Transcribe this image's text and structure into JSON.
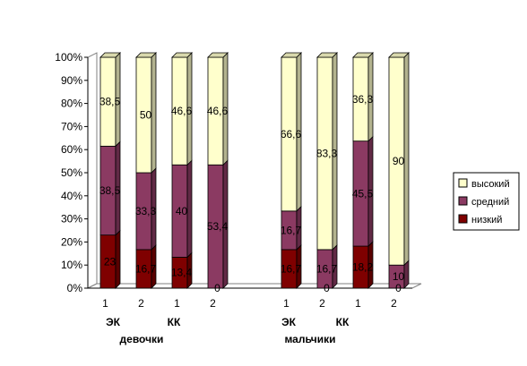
{
  "chart_data": {
    "type": "bar",
    "stacked": true,
    "percent": true,
    "categories": [
      "1",
      "2",
      "1",
      "2",
      "1",
      "2",
      "1",
      "2"
    ],
    "series": [
      {
        "name": "низкий",
        "color": "#7f0000",
        "values": [
          23,
          16.7,
          13.4,
          0,
          16.7,
          0,
          18.2,
          0
        ],
        "labels": [
          "23",
          "16,7",
          "13,4",
          "0",
          "16,7",
          "0",
          "18,2",
          "0"
        ]
      },
      {
        "name": "средний",
        "color": "#8b3a62",
        "values": [
          38.5,
          33.3,
          40,
          53.4,
          16.7,
          16.7,
          45.5,
          10
        ],
        "labels": [
          "38,5",
          "33,3",
          "40",
          "53,4",
          "16,7",
          "16,7",
          "45,5",
          "10"
        ]
      },
      {
        "name": "высокий",
        "color": "#ffffcc",
        "values": [
          38.5,
          50,
          46.6,
          46.6,
          66.6,
          83.3,
          36.3,
          90
        ],
        "labels": [
          "38,5",
          "50",
          "46,6",
          "46,6",
          "66,6",
          "83,3",
          "36,3",
          "90"
        ]
      }
    ],
    "y_ticks": [
      "0%",
      "10%",
      "20%",
      "30%",
      "40%",
      "50%",
      "60%",
      "70%",
      "80%",
      "90%",
      "100%"
    ],
    "ylim": [
      0,
      100
    ],
    "subgroups": [
      {
        "label": "ЭК",
        "bars": [
          0,
          1
        ]
      },
      {
        "label": "КК",
        "bars": [
          2,
          3
        ]
      },
      {
        "label": "ЭК",
        "bars": [
          4,
          5
        ]
      },
      {
        "label": "КК",
        "bars": [
          6,
          7
        ]
      }
    ],
    "groups": [
      {
        "label": "девочки",
        "bars": [
          0,
          1,
          2,
          3
        ]
      },
      {
        "label": "мальчики",
        "bars": [
          4,
          5,
          6,
          7
        ]
      }
    ],
    "legend": {
      "placement": "right",
      "entries": [
        "высокий",
        "средний",
        "низкий"
      ]
    },
    "grid": false
  }
}
